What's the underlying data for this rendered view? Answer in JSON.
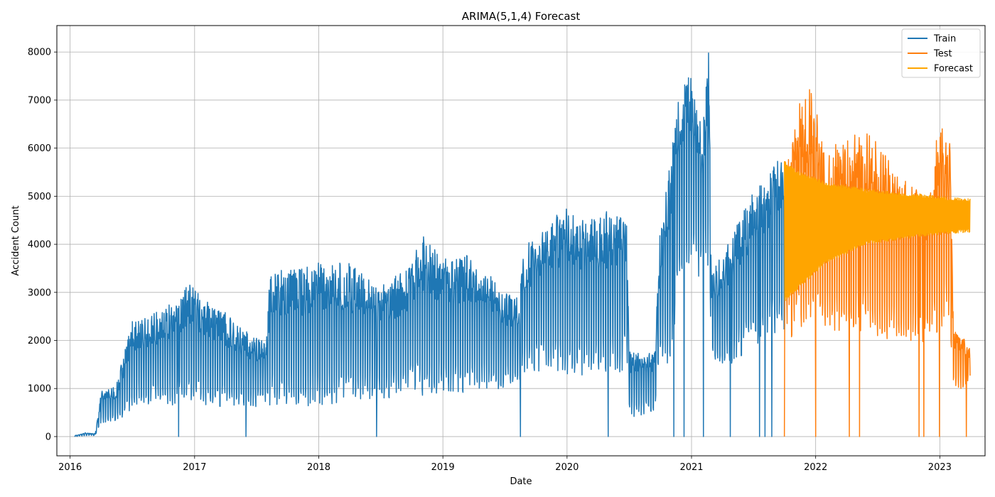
{
  "chart_data": {
    "type": "line",
    "title": "ARIMA(5,1,4) Forecast",
    "xlabel": "Date",
    "ylabel": "Accident Count",
    "xlim": [
      "2015-11-23",
      "2023-05-14"
    ],
    "ylim": [
      -400,
      8550
    ],
    "x_ticks": [
      "2016",
      "2017",
      "2018",
      "2019",
      "2020",
      "2021",
      "2022",
      "2023"
    ],
    "y_ticks": [
      0,
      1000,
      2000,
      3000,
      4000,
      5000,
      6000,
      7000,
      8000
    ],
    "grid": true,
    "legend_position": "upper right",
    "series": [
      {
        "name": "Train",
        "color": "#1f77b4",
        "x_range": [
          "2016-01-14",
          "2021-09-30"
        ],
        "envelope": {
          "x": [
            "2016-01-14",
            "2016-02-15",
            "2016-03-15",
            "2016-04-01",
            "2016-05-15",
            "2016-06-30",
            "2016-07-20",
            "2016-09-15",
            "2016-11-15",
            "2016-12-15",
            "2017-01-31",
            "2017-03-31",
            "2017-05-31",
            "2017-07-31",
            "2017-08-10",
            "2017-10-31",
            "2017-12-31",
            "2018-03-31",
            "2018-06-30",
            "2018-09-30",
            "2018-10-31",
            "2018-12-31",
            "2019-03-31",
            "2019-06-30",
            "2019-08-15",
            "2019-08-25",
            "2019-10-31",
            "2019-12-15",
            "2020-02-28",
            "2020-04-30",
            "2020-06-25",
            "2020-07-01",
            "2020-08-15",
            "2020-09-15",
            "2020-09-30",
            "2020-11-01",
            "2020-12-01",
            "2020-12-31",
            "2021-01-31",
            "2021-02-20",
            "2021-03-01",
            "2021-05-01",
            "2021-07-01",
            "2021-09-30"
          ],
          "high": [
            20,
            80,
            60,
            950,
            1050,
            2400,
            2400,
            2600,
            2900,
            3200,
            2850,
            2600,
            2200,
            1950,
            3450,
            3500,
            3650,
            3600,
            3100,
            3600,
            4250,
            3700,
            3800,
            3000,
            2900,
            3950,
            4300,
            4800,
            4500,
            4700,
            4650,
            1800,
            1800,
            1750,
            4200,
            5800,
            7500,
            7500,
            6600,
            8150,
            3400,
            4200,
            5100,
            5900
          ],
          "low": [
            0,
            20,
            20,
            250,
            300,
            500,
            700,
            650,
            650,
            700,
            600,
            600,
            600,
            650,
            650,
            650,
            600,
            750,
            800,
            800,
            850,
            900,
            900,
            1000,
            1050,
            1200,
            1400,
            1200,
            1300,
            1300,
            1300,
            400,
            450,
            500,
            1800,
            1300,
            3300,
            3600,
            3200,
            3500,
            1500,
            1500,
            1800,
            2200
          ]
        },
        "drops_to_zero": [
          "2016-11-15",
          "2017-06-01",
          "2018-06-20",
          "2019-08-17",
          "2020-05-01",
          "2020-11-10",
          "2020-12-10",
          "2021-02-05",
          "2021-04-25",
          "2021-07-20",
          "2021-08-05",
          "2021-08-25"
        ]
      },
      {
        "name": "Test",
        "color": "#ff7f0e",
        "x_range": [
          "2021-10-01",
          "2023-03-31"
        ],
        "envelope": {
          "x": [
            "2021-10-01",
            "2021-11-15",
            "2021-12-15",
            "2022-01-31",
            "2022-03-31",
            "2022-05-31",
            "2022-07-31",
            "2022-09-30",
            "2022-11-30",
            "2022-12-31",
            "2023-01-31",
            "2023-02-10",
            "2023-03-31"
          ],
          "high": [
            5700,
            7050,
            7300,
            6000,
            6200,
            6400,
            5800,
            5300,
            5000,
            6700,
            6100,
            2300,
            1900
          ],
          "low": [
            1900,
            2100,
            2200,
            2200,
            2100,
            2100,
            2000,
            1900,
            2000,
            2200,
            2300,
            900,
            1100
          ]
        },
        "drops_to_zero": [
          "2021-10-01",
          "2022-01-01",
          "2022-04-10",
          "2022-05-10",
          "2022-11-01",
          "2022-11-15",
          "2022-12-31",
          "2023-03-20"
        ]
      },
      {
        "name": "Forecast",
        "color": "#ffa500",
        "x_range": [
          "2021-10-01",
          "2023-03-31"
        ],
        "envelope": {
          "x": [
            "2021-10-01",
            "2021-11-15",
            "2022-01-31",
            "2022-05-31",
            "2022-10-31",
            "2022-12-31",
            "2023-03-31"
          ],
          "high": [
            5750,
            5500,
            5300,
            5150,
            5050,
            5000,
            4950
          ],
          "low": [
            2800,
            3100,
            3600,
            4000,
            4150,
            4200,
            4250
          ]
        }
      }
    ]
  }
}
